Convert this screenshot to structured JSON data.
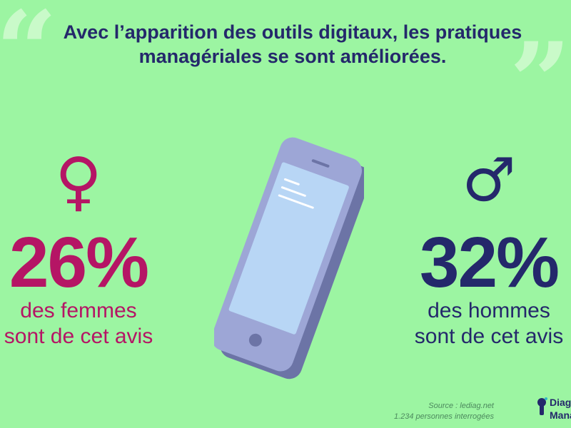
{
  "quotes": {
    "open": "“",
    "close": "”"
  },
  "headline": {
    "line1": "Avec l’apparition des outils digitaux, les pratiques",
    "line2": "managériales se sont améliorées."
  },
  "women": {
    "symbol": "♀",
    "percent": "26%",
    "line1": "des femmes",
    "line2": "sont de cet avis",
    "color": "#b51565"
  },
  "men": {
    "symbol": "♂",
    "percent": "32%",
    "line1": "des hommes",
    "line2": "sont de cet avis",
    "color": "#24286b"
  },
  "phone": {
    "icon": "smartphone-icon"
  },
  "source": {
    "line1": "Source : lediag.net",
    "line2": "1.234 personnes interrogées"
  },
  "logo": {
    "line1": "Diagn",
    "line2": "Mana"
  },
  "colors": {
    "background": "#9cf5a2",
    "accent_dark": "#24286b",
    "accent_pink": "#b51565"
  }
}
